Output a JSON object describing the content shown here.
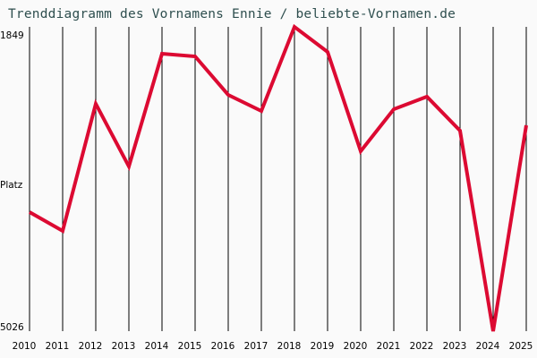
{
  "title": "Trenddiagramm des Vornamens Ennie / beliebte-Vornamen.de",
  "y_axis": {
    "top_label": "1849",
    "mid_label": "Platz",
    "bottom_label": "5026"
  },
  "colors": {
    "line": "#dc0a32",
    "grid": "#000000",
    "title": "#2f4f4f",
    "background": "#fafafa"
  },
  "chart_data": {
    "type": "line",
    "title": "Trenddiagramm des Vornamens Ennie / beliebte-Vornamen.de",
    "xlabel": "",
    "ylabel": "Platz",
    "ylim": [
      5026,
      1849
    ],
    "y_inverted": true,
    "grid": "vertical",
    "categories": [
      "2010",
      "2011",
      "2012",
      "2013",
      "2014",
      "2015",
      "2016",
      "2017",
      "2018",
      "2019",
      "2020",
      "2021",
      "2022",
      "2023",
      "2024",
      "2025"
    ],
    "series": [
      {
        "name": "Ennie",
        "values": [
          3783,
          3979,
          2653,
          3307,
          2129,
          2157,
          2559,
          2727,
          1849,
          2111,
          3148,
          2709,
          2578,
          2933,
          5026,
          2877
        ]
      }
    ]
  }
}
